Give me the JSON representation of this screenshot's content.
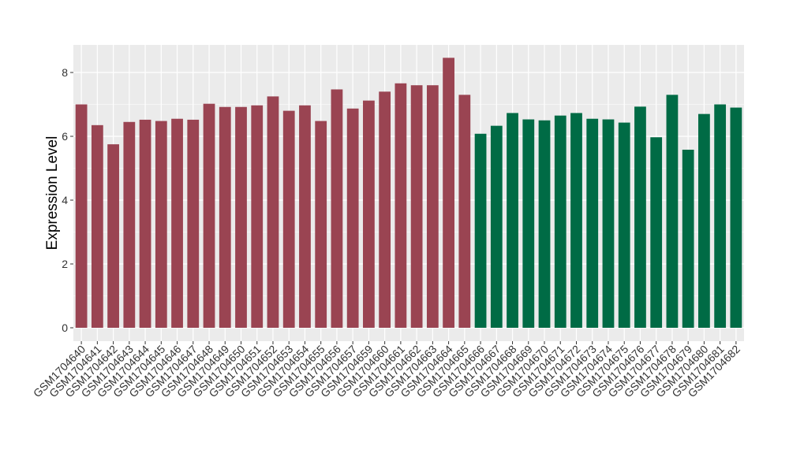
{
  "chart_data": {
    "type": "bar",
    "title": "",
    "xlabel": "",
    "ylabel": "Expression Level",
    "ylim": [
      0,
      8.8
    ],
    "yticks": [
      0,
      2,
      4,
      6,
      8
    ],
    "grid": true,
    "legend": "none",
    "colors": {
      "group1": "#9a4452",
      "group2": "#006b45",
      "panel": "#ebebeb",
      "grid": "#ffffff"
    },
    "categories": [
      "GSM1704640",
      "GSM1704641",
      "GSM1704642",
      "GSM1704643",
      "GSM1704644",
      "GSM1704645",
      "GSM1704646",
      "GSM1704647",
      "GSM1704648",
      "GSM1704649",
      "GSM1704650",
      "GSM1704651",
      "GSM1704652",
      "GSM1704653",
      "GSM1704654",
      "GSM1704655",
      "GSM1704656",
      "GSM1704657",
      "GSM1704659",
      "GSM1704660",
      "GSM1704661",
      "GSM1704662",
      "GSM1704663",
      "GSM1704664",
      "GSM1704665",
      "GSM1704666",
      "GSM1704667",
      "GSM1704668",
      "GSM1704669",
      "GSM1704670",
      "GSM1704671",
      "GSM1704672",
      "GSM1704673",
      "GSM1704674",
      "GSM1704675",
      "GSM1704676",
      "GSM1704677",
      "GSM1704678",
      "GSM1704679",
      "GSM1704680",
      "GSM1704681",
      "GSM1704682"
    ],
    "values": [
      7.0,
      6.35,
      5.75,
      6.45,
      6.52,
      6.48,
      6.55,
      6.52,
      7.02,
      6.92,
      6.92,
      6.97,
      7.25,
      6.8,
      6.97,
      6.48,
      7.47,
      6.87,
      7.12,
      7.4,
      7.66,
      7.6,
      7.6,
      8.46,
      7.3,
      6.08,
      6.33,
      6.73,
      6.53,
      6.5,
      6.65,
      6.73,
      6.55,
      6.53,
      6.43,
      6.93,
      5.97,
      7.3,
      5.58,
      6.7,
      7.0,
      6.9
    ],
    "groups": [
      "group1",
      "group1",
      "group1",
      "group1",
      "group1",
      "group1",
      "group1",
      "group1",
      "group1",
      "group1",
      "group1",
      "group1",
      "group1",
      "group1",
      "group1",
      "group1",
      "group1",
      "group1",
      "group1",
      "group1",
      "group1",
      "group1",
      "group1",
      "group1",
      "group1",
      "group2",
      "group2",
      "group2",
      "group2",
      "group2",
      "group2",
      "group2",
      "group2",
      "group2",
      "group2",
      "group2",
      "group2",
      "group2",
      "group2",
      "group2",
      "group2",
      "group2"
    ]
  }
}
